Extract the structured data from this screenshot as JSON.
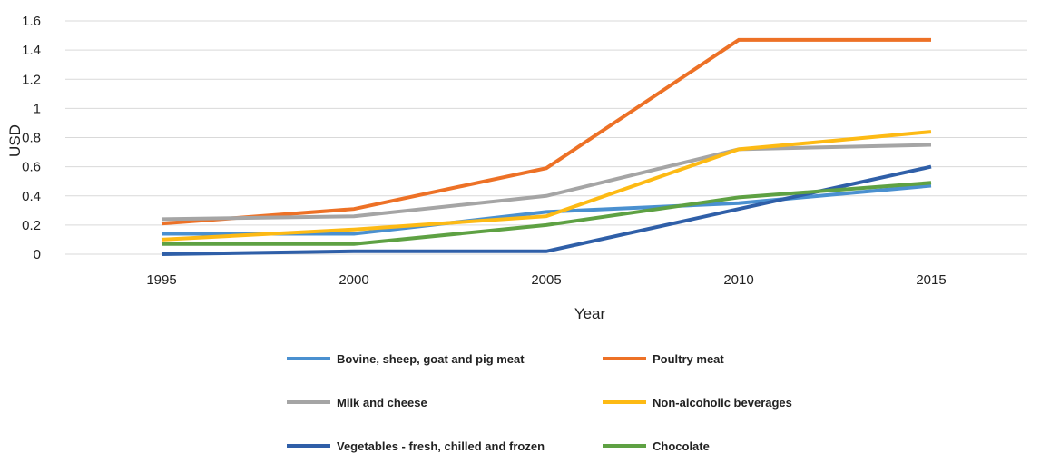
{
  "chart_data": {
    "type": "line",
    "title": "",
    "xlabel": "Year",
    "ylabel": "USD",
    "x": [
      "1995",
      "2000",
      "2005",
      "2010",
      "2015"
    ],
    "ylim": [
      0,
      1.6
    ],
    "yticks": [
      "0",
      "0.2",
      "0.4",
      "0.6",
      "0.8",
      "1",
      "1.2",
      "1.4",
      "1.6"
    ],
    "grid": "horizontal",
    "legend_position": "bottom",
    "series": [
      {
        "name": "Bovine, sheep, goat and pig meat",
        "color": "#4a90d0",
        "values": [
          0.14,
          0.14,
          0.29,
          0.35,
          0.47
        ]
      },
      {
        "name": "Poultry meat",
        "color": "#ed7126",
        "values": [
          0.21,
          0.31,
          0.59,
          1.47,
          1.47
        ]
      },
      {
        "name": "Milk and cheese",
        "color": "#a5a5a5",
        "values": [
          0.24,
          0.26,
          0.4,
          0.72,
          0.75
        ]
      },
      {
        "name": "Non-alcoholic beverages",
        "color": "#fdba14",
        "values": [
          0.1,
          0.17,
          0.26,
          0.72,
          0.84
        ]
      },
      {
        "name": "Vegetables - fresh, chilled and frozen",
        "color": "#2f5fa8",
        "values": [
          0.0,
          0.02,
          0.02,
          0.31,
          0.6
        ]
      },
      {
        "name": "Chocolate",
        "color": "#5ea143",
        "values": [
          0.07,
          0.07,
          0.2,
          0.39,
          0.49
        ]
      }
    ]
  }
}
